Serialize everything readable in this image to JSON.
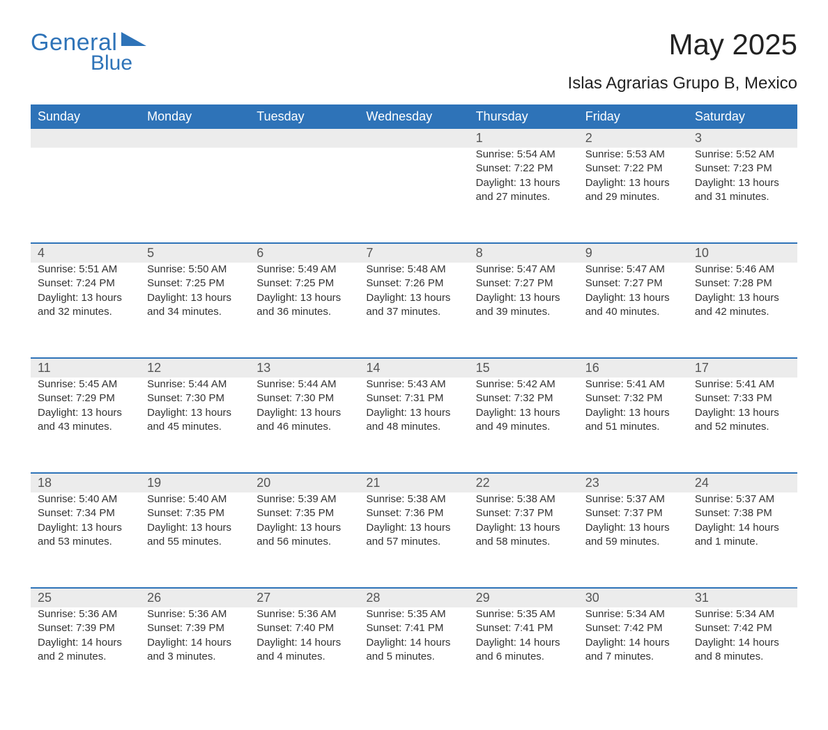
{
  "brand": {
    "word1": "General",
    "word2": "Blue",
    "brand_color": "#2e73b8"
  },
  "header": {
    "title": "May 2025",
    "location": "Islas Agrarias Grupo B, Mexico"
  },
  "style": {
    "header_bg": "#2e73b8",
    "header_text": "#ffffff",
    "row_divider": "#2e73b8",
    "daynum_bg": "#ececec",
    "body_text": "#333333",
    "page_bg": "#ffffff",
    "title_fontsize": 42,
    "location_fontsize": 24,
    "weekday_fontsize": 18,
    "daynum_fontsize": 18,
    "detail_fontsize": 15
  },
  "weekdays": [
    "Sunday",
    "Monday",
    "Tuesday",
    "Wednesday",
    "Thursday",
    "Friday",
    "Saturday"
  ],
  "weeks": [
    [
      {
        "day": "",
        "sunrise": "",
        "sunset": "",
        "daylight": ""
      },
      {
        "day": "",
        "sunrise": "",
        "sunset": "",
        "daylight": ""
      },
      {
        "day": "",
        "sunrise": "",
        "sunset": "",
        "daylight": ""
      },
      {
        "day": "",
        "sunrise": "",
        "sunset": "",
        "daylight": ""
      },
      {
        "day": "1",
        "sunrise": "Sunrise: 5:54 AM",
        "sunset": "Sunset: 7:22 PM",
        "daylight": "Daylight: 13 hours and 27 minutes."
      },
      {
        "day": "2",
        "sunrise": "Sunrise: 5:53 AM",
        "sunset": "Sunset: 7:22 PM",
        "daylight": "Daylight: 13 hours and 29 minutes."
      },
      {
        "day": "3",
        "sunrise": "Sunrise: 5:52 AM",
        "sunset": "Sunset: 7:23 PM",
        "daylight": "Daylight: 13 hours and 31 minutes."
      }
    ],
    [
      {
        "day": "4",
        "sunrise": "Sunrise: 5:51 AM",
        "sunset": "Sunset: 7:24 PM",
        "daylight": "Daylight: 13 hours and 32 minutes."
      },
      {
        "day": "5",
        "sunrise": "Sunrise: 5:50 AM",
        "sunset": "Sunset: 7:25 PM",
        "daylight": "Daylight: 13 hours and 34 minutes."
      },
      {
        "day": "6",
        "sunrise": "Sunrise: 5:49 AM",
        "sunset": "Sunset: 7:25 PM",
        "daylight": "Daylight: 13 hours and 36 minutes."
      },
      {
        "day": "7",
        "sunrise": "Sunrise: 5:48 AM",
        "sunset": "Sunset: 7:26 PM",
        "daylight": "Daylight: 13 hours and 37 minutes."
      },
      {
        "day": "8",
        "sunrise": "Sunrise: 5:47 AM",
        "sunset": "Sunset: 7:27 PM",
        "daylight": "Daylight: 13 hours and 39 minutes."
      },
      {
        "day": "9",
        "sunrise": "Sunrise: 5:47 AM",
        "sunset": "Sunset: 7:27 PM",
        "daylight": "Daylight: 13 hours and 40 minutes."
      },
      {
        "day": "10",
        "sunrise": "Sunrise: 5:46 AM",
        "sunset": "Sunset: 7:28 PM",
        "daylight": "Daylight: 13 hours and 42 minutes."
      }
    ],
    [
      {
        "day": "11",
        "sunrise": "Sunrise: 5:45 AM",
        "sunset": "Sunset: 7:29 PM",
        "daylight": "Daylight: 13 hours and 43 minutes."
      },
      {
        "day": "12",
        "sunrise": "Sunrise: 5:44 AM",
        "sunset": "Sunset: 7:30 PM",
        "daylight": "Daylight: 13 hours and 45 minutes."
      },
      {
        "day": "13",
        "sunrise": "Sunrise: 5:44 AM",
        "sunset": "Sunset: 7:30 PM",
        "daylight": "Daylight: 13 hours and 46 minutes."
      },
      {
        "day": "14",
        "sunrise": "Sunrise: 5:43 AM",
        "sunset": "Sunset: 7:31 PM",
        "daylight": "Daylight: 13 hours and 48 minutes."
      },
      {
        "day": "15",
        "sunrise": "Sunrise: 5:42 AM",
        "sunset": "Sunset: 7:32 PM",
        "daylight": "Daylight: 13 hours and 49 minutes."
      },
      {
        "day": "16",
        "sunrise": "Sunrise: 5:41 AM",
        "sunset": "Sunset: 7:32 PM",
        "daylight": "Daylight: 13 hours and 51 minutes."
      },
      {
        "day": "17",
        "sunrise": "Sunrise: 5:41 AM",
        "sunset": "Sunset: 7:33 PM",
        "daylight": "Daylight: 13 hours and 52 minutes."
      }
    ],
    [
      {
        "day": "18",
        "sunrise": "Sunrise: 5:40 AM",
        "sunset": "Sunset: 7:34 PM",
        "daylight": "Daylight: 13 hours and 53 minutes."
      },
      {
        "day": "19",
        "sunrise": "Sunrise: 5:40 AM",
        "sunset": "Sunset: 7:35 PM",
        "daylight": "Daylight: 13 hours and 55 minutes."
      },
      {
        "day": "20",
        "sunrise": "Sunrise: 5:39 AM",
        "sunset": "Sunset: 7:35 PM",
        "daylight": "Daylight: 13 hours and 56 minutes."
      },
      {
        "day": "21",
        "sunrise": "Sunrise: 5:38 AM",
        "sunset": "Sunset: 7:36 PM",
        "daylight": "Daylight: 13 hours and 57 minutes."
      },
      {
        "day": "22",
        "sunrise": "Sunrise: 5:38 AM",
        "sunset": "Sunset: 7:37 PM",
        "daylight": "Daylight: 13 hours and 58 minutes."
      },
      {
        "day": "23",
        "sunrise": "Sunrise: 5:37 AM",
        "sunset": "Sunset: 7:37 PM",
        "daylight": "Daylight: 13 hours and 59 minutes."
      },
      {
        "day": "24",
        "sunrise": "Sunrise: 5:37 AM",
        "sunset": "Sunset: 7:38 PM",
        "daylight": "Daylight: 14 hours and 1 minute."
      }
    ],
    [
      {
        "day": "25",
        "sunrise": "Sunrise: 5:36 AM",
        "sunset": "Sunset: 7:39 PM",
        "daylight": "Daylight: 14 hours and 2 minutes."
      },
      {
        "day": "26",
        "sunrise": "Sunrise: 5:36 AM",
        "sunset": "Sunset: 7:39 PM",
        "daylight": "Daylight: 14 hours and 3 minutes."
      },
      {
        "day": "27",
        "sunrise": "Sunrise: 5:36 AM",
        "sunset": "Sunset: 7:40 PM",
        "daylight": "Daylight: 14 hours and 4 minutes."
      },
      {
        "day": "28",
        "sunrise": "Sunrise: 5:35 AM",
        "sunset": "Sunset: 7:41 PM",
        "daylight": "Daylight: 14 hours and 5 minutes."
      },
      {
        "day": "29",
        "sunrise": "Sunrise: 5:35 AM",
        "sunset": "Sunset: 7:41 PM",
        "daylight": "Daylight: 14 hours and 6 minutes."
      },
      {
        "day": "30",
        "sunrise": "Sunrise: 5:34 AM",
        "sunset": "Sunset: 7:42 PM",
        "daylight": "Daylight: 14 hours and 7 minutes."
      },
      {
        "day": "31",
        "sunrise": "Sunrise: 5:34 AM",
        "sunset": "Sunset: 7:42 PM",
        "daylight": "Daylight: 14 hours and 8 minutes."
      }
    ]
  ]
}
